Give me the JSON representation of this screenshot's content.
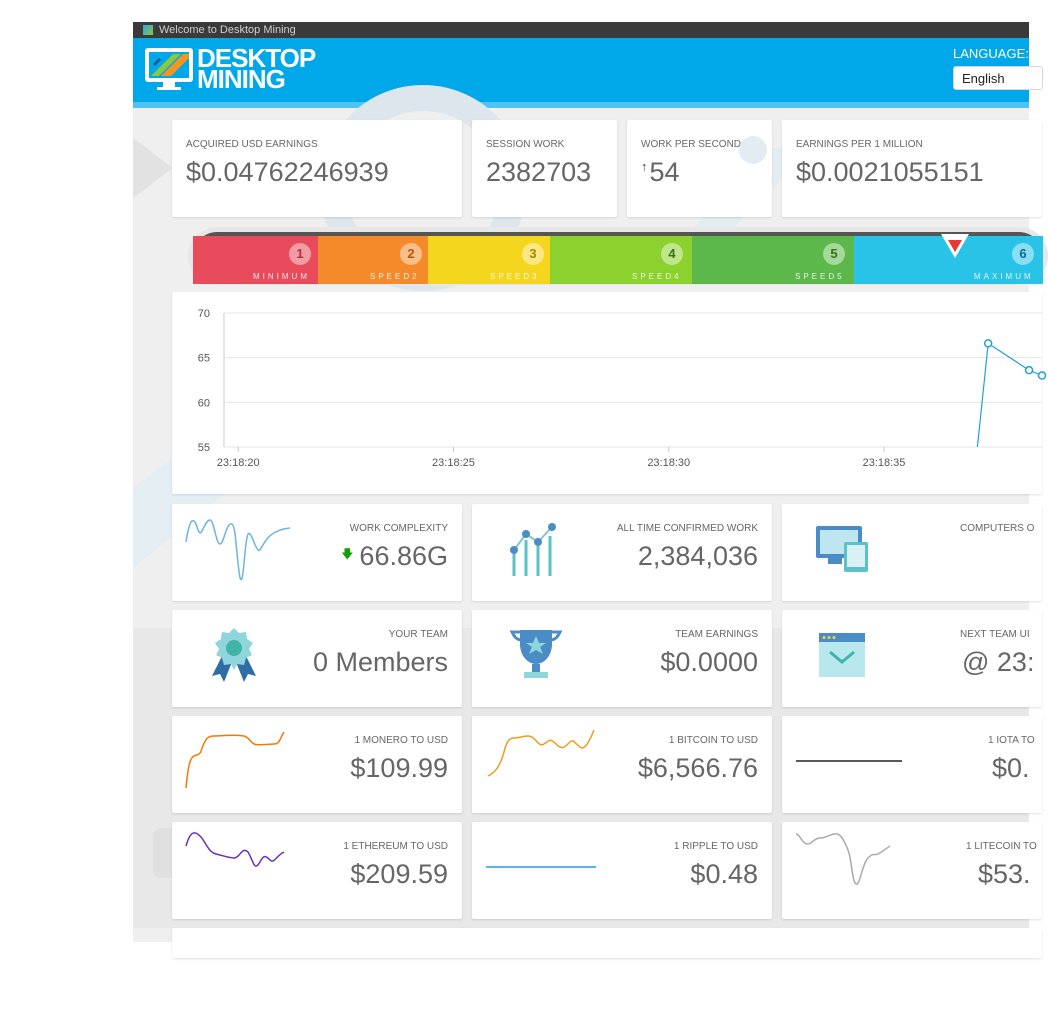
{
  "window": {
    "title": "Welcome to Desktop Mining"
  },
  "header": {
    "logo_line1": "DESKTOP",
    "logo_line2": "MINING",
    "language_label": "LANGUAGE:",
    "language_value": "English"
  },
  "stats": [
    {
      "label": "ACQUIRED USD EARNINGS",
      "value": "$0.04762246939"
    },
    {
      "label": "SESSION WORK",
      "value": "2382703"
    },
    {
      "label": "WORK PER SECOND",
      "value": "54"
    },
    {
      "label": "EARNINGS PER 1 MILLION",
      "value": "$0.0021055151"
    }
  ],
  "speed": {
    "selected_level": 6,
    "levels": [
      {
        "num": "1",
        "label": "MINIMUM",
        "color": "#e84c5c"
      },
      {
        "num": "2",
        "label": "SPEED2",
        "color": "#f58a2b"
      },
      {
        "num": "3",
        "label": "SPEED3",
        "color": "#f5d61e"
      },
      {
        "num": "4",
        "label": "SPEED4",
        "color": "#8cd12e"
      },
      {
        "num": "5",
        "label": "SPEED5",
        "color": "#5cb84a"
      },
      {
        "num": "6",
        "label": "MAXIMUM",
        "color": "#29c3e8"
      }
    ]
  },
  "chart_data": {
    "type": "line",
    "x_ticks": [
      "23:18:20",
      "23:18:25",
      "23:18:30",
      "23:18:35"
    ],
    "y_ticks": [
      "70",
      "65",
      "60",
      "55"
    ],
    "ylim": [
      55,
      70
    ],
    "x_range_seconds": [
      0,
      19
    ],
    "series": [
      {
        "color": "#1ea0d9",
        "points": [
          {
            "t": 17.5,
            "y": 55
          },
          {
            "t": 17.75,
            "y": 66.6
          },
          {
            "t": 18.7,
            "y": 63.6
          },
          {
            "t": 19.0,
            "y": 63.0
          }
        ]
      }
    ]
  },
  "tiles": {
    "work_complexity": {
      "label": "WORK COMPLEXITY",
      "value": "66.86G"
    },
    "all_time_work": {
      "label": "ALL TIME CONFIRMED WORK",
      "value": "2,384,036"
    },
    "computers": {
      "label": "COMPUTERS O"
    },
    "your_team": {
      "label": "YOUR TEAM",
      "value": "0 Members"
    },
    "team_earnings": {
      "label": "TEAM EARNINGS",
      "value": "$0.0000"
    },
    "next_team": {
      "label": "NEXT TEAM UI",
      "value": "@ 23:"
    },
    "monero": {
      "label": "1 MONERO TO USD",
      "value": "$109.99"
    },
    "bitcoin": {
      "label": "1 BITCOIN TO USD",
      "value": "$6,566.76"
    },
    "iota": {
      "label": "1 IOTA TO",
      "value": "$0."
    },
    "ethereum": {
      "label": "1 ETHEREUM TO USD",
      "value": "$209.59"
    },
    "ripple": {
      "label": "1 RIPPLE TO USD",
      "value": "$0.48"
    },
    "litecoin": {
      "label": "1 LITECOIN TO",
      "value": "$53."
    }
  },
  "colors": {
    "header_blue": "#00a8ea",
    "monero_line": "#f07a00",
    "bitcoin_line": "#f29a1b",
    "ethereum_line": "#6a2fb8",
    "ripple_line": "#1ea0d9",
    "litecoin_line": "#aaaaaa"
  }
}
